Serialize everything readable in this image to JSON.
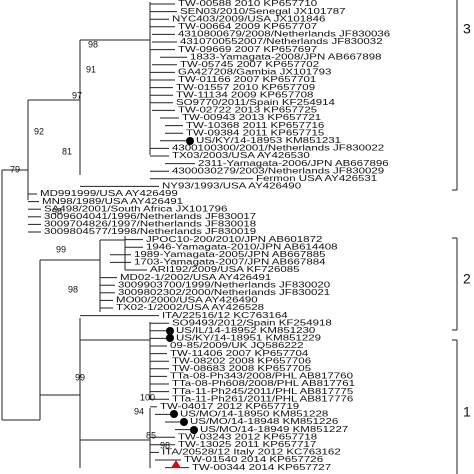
{
  "tree": {
    "leaves": [
      "TW-00588 2010 KP657710",
      "SEN03/2010/Senegal JX101787",
      "NYC403/2009/USA JX101846",
      "TW-00664 2009 KP657707",
      "4310800679/2008/Netherlands JF830036",
      "4310700552007/Netherlands JF830032",
      "TW-09669 2007 KP657697",
      "1833-Yamagata-2008/JPN AB667898",
      "TW-05745 2007 KP657702",
      "GA427208/Gambia JX101793",
      "TW-01166 2007 KP657701",
      "TW-01557 2010 KP657709",
      "TW-11134 2009 KP657708",
      "SO9770/2011/Spain KF254914",
      "TW-02722 2013 KP657725",
      "TW-00943 2013 KP657721",
      "TW-10368 2011 KP657716",
      "TW-09384 2011 KP657715",
      "US/KY/14-18953 KM851231",
      "4300100300/2001/Netherlands JF830022",
      "TX03/2003/USA AY426530",
      "2311-Yamagata-2006/JPN AB667896",
      "4300030279/2003/Netherlands JF830029",
      "Fermon USA AY426531",
      "NY93/1993/USA AY426490",
      "MD991999/USA AY426499",
      "MN98/1989/USA AY426491",
      "SA498/2001/South Africa JX101796",
      "3009604041/1996/Netherlands JF830017",
      "3009704826/1997/Netherlands JF830018",
      "3009804577/1998/Netherlands JF830019",
      "JPOC10-200/2010/JPN AB601872",
      "1946-Yamagata-2010/JPN AB614408",
      "1989-Yamagata-2005/JPN AB667885",
      "1703-Yamagata-2007/JPN AB667884",
      "ARI192/2009/USA KF726085",
      "MD02-1/2002/USA AY426491",
      "3009903700/1999/Netherlands JF830020",
      "3009802302/2000/Netherlands JF830021",
      "MO00/2000/USA AY426490",
      "TX02-1/2002/USA AY426528",
      "ITA/22516/12 KC763164",
      "SO9493/2012/Spain KF254918",
      "US/IL/14-18952 KM851230",
      "US/KY/14-18951 KM851229",
      "09-85/2009/UK JQ586222",
      "TW-11406 2007 KP657704",
      "TW-08202 2008 KP657706",
      "TW-08683 2008 KP657705",
      "TTa-08-Ph343/2008/PHL AB817760",
      "TTa-08-Ph608/2008/PHL AB817761",
      "TTa-11-Ph245/2011/PHL AB817775",
      "TTa-11-Ph261/2011/PHL AB817776",
      "TW-04017 2012 KP657719",
      "US/MO/14-18950 KM851228",
      "US/MO/14-18948 KM851226",
      "US/MO/14-18949 KM851227",
      "TW-03243 2012 KP657718",
      "TW-13025 2011 KP657717",
      "ITA/20528/12 Italy 2012 KC763162",
      "TW-01540 2014 KP657726",
      "TW-00344 2014 KP657727"
    ],
    "support_values": [
      "98",
      "91",
      "97",
      "92",
      "81",
      "79",
      "98",
      "99",
      "98",
      "99",
      "100",
      "94",
      "85",
      "98"
    ],
    "clades": [
      "3",
      "2",
      "1"
    ]
  }
}
